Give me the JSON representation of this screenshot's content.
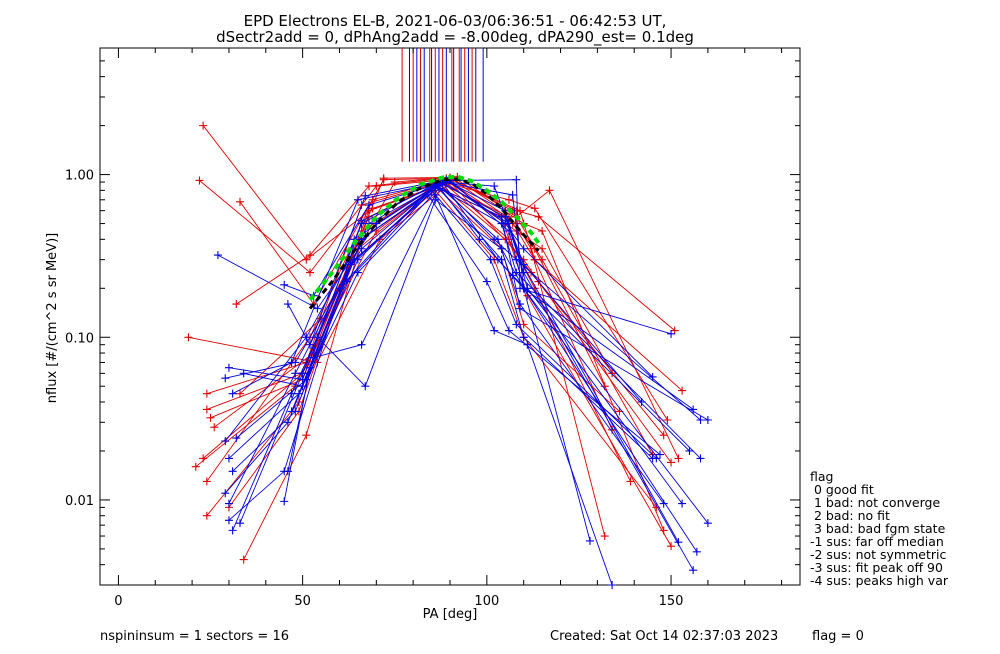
{
  "title_line1": "EPD Electrons EL-B, 2021-06-03/06:36:51 - 06:42:53 UT,",
  "title_line2": "dSectr2add = 0, dPhAng2add = -8.00deg, dPA290_est=   0.1deg",
  "footer": {
    "left": "nspininsum =  1  sectors = 16",
    "created": "Created: Sat Oct 14 02:37:03 2023",
    "flag": "flag = 0"
  },
  "legend": {
    "title": "flag",
    "items": [
      " 0 good fit",
      " 1 bad: not converge",
      " 2 bad: no fit",
      " 3 bad: bad fgm state",
      "-1 sus: far off median",
      "-2 sus: not symmetric",
      "-3 sus: fit peak off 90",
      "-4 sus: peaks high var"
    ]
  },
  "colors": {
    "red": "#e00000",
    "blue": "#0000e0",
    "green": "#00dd00",
    "black": "#000000"
  },
  "chart_data": {
    "type": "line",
    "xlabel": "PA [deg]",
    "ylabel": "nflux [#/(cm^2 s sr MeV)]",
    "xlim": [
      -5,
      185
    ],
    "ylim": [
      0.003,
      6.0
    ],
    "yscale": "log",
    "xticks": [
      0,
      50,
      100,
      150
    ],
    "xticklabels": [
      "0",
      "50",
      "100",
      "150"
    ],
    "yticks": [
      0.01,
      0.1,
      1.0
    ],
    "yticklabels": [
      "0.01",
      "0.10",
      "1.00"
    ],
    "sector_markers": {
      "y_range": [
        1.2,
        6.0
      ],
      "red_x": [
        77,
        80,
        82,
        84.5,
        86,
        88,
        90.5,
        92.5,
        94,
        96
      ],
      "blue_x": [
        79,
        81,
        83,
        85,
        87,
        89,
        91,
        93,
        95,
        97,
        99
      ]
    },
    "series": [
      {
        "color": "red",
        "x": [
          23,
          51,
          69,
          88,
          106,
          113,
          134
        ],
        "y": [
          2.0,
          0.3,
          0.62,
          0.87,
          0.55,
          0.3,
          0.027
        ]
      },
      {
        "color": "red",
        "x": [
          22,
          52,
          70,
          89,
          107,
          113,
          132
        ],
        "y": [
          0.92,
          0.25,
          0.85,
          0.93,
          0.5,
          0.35,
          0.05
        ]
      },
      {
        "color": "red",
        "x": [
          33,
          53,
          72,
          90,
          108,
          114,
          151
        ],
        "y": [
          0.68,
          0.16,
          0.93,
          0.95,
          0.6,
          0.55,
          0.11
        ]
      },
      {
        "color": "red",
        "x": [
          19,
          54,
          71,
          91,
          109,
          113,
          153
        ],
        "y": [
          0.1,
          0.07,
          0.4,
          0.92,
          0.6,
          0.3,
          0.047
        ]
      },
      {
        "color": "red",
        "x": [
          32,
          52,
          68,
          89,
          110,
          114,
          150
        ],
        "y": [
          0.16,
          0.32,
          0.85,
          0.95,
          0.3,
          0.22,
          0.017
        ]
      },
      {
        "color": "red",
        "x": [
          24,
          51,
          66,
          88,
          106,
          113,
          149
        ],
        "y": [
          0.045,
          0.07,
          0.65,
          0.9,
          0.7,
          0.62,
          0.031
        ]
      },
      {
        "color": "red",
        "x": [
          24,
          50,
          70,
          87,
          105,
          112,
          148
        ],
        "y": [
          0.036,
          0.06,
          0.45,
          0.88,
          0.4,
          0.25,
          0.025
        ]
      },
      {
        "color": "red",
        "x": [
          25,
          50,
          72,
          90,
          108,
          112,
          132
        ],
        "y": [
          0.032,
          0.055,
          0.95,
          0.96,
          0.5,
          0.35,
          0.006
        ]
      },
      {
        "color": "red",
        "x": [
          21,
          48,
          65,
          86,
          104,
          111,
          150
        ],
        "y": [
          0.016,
          0.05,
          0.35,
          0.85,
          0.55,
          0.18,
          0.0052
        ]
      },
      {
        "color": "red",
        "x": [
          26,
          53,
          68,
          92,
          110,
          115,
          148
        ],
        "y": [
          0.028,
          0.08,
          0.6,
          0.93,
          0.5,
          0.45,
          0.0065
        ]
      },
      {
        "color": "red",
        "x": [
          24,
          49,
          64,
          86,
          102,
          110,
          146
        ],
        "y": [
          0.008,
          0.04,
          0.3,
          0.8,
          0.3,
          0.1,
          0.009
        ]
      },
      {
        "color": "red",
        "x": [
          34,
          51,
          66,
          88,
          106,
          113,
          139
        ],
        "y": [
          0.0043,
          0.025,
          0.4,
          0.9,
          0.4,
          0.2,
          0.013
        ]
      },
      {
        "color": "red",
        "x": [
          23,
          50,
          68,
          90,
          107,
          115,
          145
        ],
        "y": [
          0.018,
          0.06,
          0.55,
          0.95,
          0.6,
          0.3,
          0.019
        ]
      },
      {
        "color": "red",
        "x": [
          24,
          52,
          69,
          88,
          108,
          115,
          134
        ],
        "y": [
          0.013,
          0.1,
          0.7,
          0.92,
          0.45,
          0.35,
          0.06
        ]
      },
      {
        "color": "red",
        "x": [
          33,
          55,
          75,
          92,
          108,
          117,
          152
        ],
        "y": [
          0.045,
          0.13,
          0.9,
          0.97,
          0.55,
          0.8,
          0.018
        ]
      },
      {
        "color": "red",
        "x": [
          30,
          49,
          66,
          86,
          104,
          110,
          136
        ],
        "y": [
          0.009,
          0.035,
          0.45,
          0.85,
          0.35,
          0.12,
          0.035
        ]
      },
      {
        "color": "blue",
        "x": [
          27,
          54,
          70,
          88,
          102,
          110,
          142
        ],
        "y": [
          0.32,
          0.15,
          0.5,
          0.9,
          0.85,
          0.28,
          0.04
        ]
      },
      {
        "color": "blue",
        "x": [
          45,
          53,
          68,
          90,
          108,
          109,
          150
        ],
        "y": [
          0.21,
          0.18,
          0.65,
          0.92,
          0.93,
          0.2,
          0.105
        ]
      },
      {
        "color": "blue",
        "x": [
          46,
          52,
          67,
          89,
          105,
          110,
          145
        ],
        "y": [
          0.16,
          0.09,
          0.74,
          0.93,
          0.5,
          0.35,
          0.057
        ]
      },
      {
        "color": "blue",
        "x": [
          30,
          50,
          64,
          87,
          102,
          108,
          158
        ],
        "y": [
          0.065,
          0.055,
          0.4,
          0.88,
          0.4,
          0.3,
          0.031
        ]
      },
      {
        "color": "blue",
        "x": [
          29,
          48,
          66,
          86,
          104,
          109,
          160
        ],
        "y": [
          0.056,
          0.07,
          0.35,
          0.85,
          0.55,
          0.15,
          0.031
        ]
      },
      {
        "color": "blue",
        "x": [
          31,
          47,
          65,
          90,
          106,
          110,
          156
        ],
        "y": [
          0.045,
          0.07,
          0.7,
          0.92,
          0.45,
          0.2,
          0.036
        ]
      },
      {
        "color": "blue",
        "x": [
          29,
          51,
          68,
          88,
          103,
          107,
          155
        ],
        "y": [
          0.023,
          0.1,
          0.5,
          0.89,
          0.3,
          0.24,
          0.02
        ]
      },
      {
        "color": "blue",
        "x": [
          30,
          49,
          63,
          85,
          101,
          108,
          146
        ],
        "y": [
          0.018,
          0.045,
          0.28,
          0.8,
          0.3,
          0.12,
          0.018
        ]
      },
      {
        "color": "blue",
        "x": [
          31,
          48,
          62,
          84,
          100,
          106,
          147
        ],
        "y": [
          0.015,
          0.035,
          0.22,
          0.75,
          0.22,
          0.11,
          0.019
        ]
      },
      {
        "color": "blue",
        "x": [
          29,
          46,
          64,
          87,
          103,
          109,
          148
        ],
        "y": [
          0.011,
          0.03,
          0.3,
          0.85,
          0.4,
          0.16,
          0.0095
        ]
      },
      {
        "color": "blue",
        "x": [
          30,
          45,
          66,
          88,
          107,
          110,
          153
        ],
        "y": [
          0.0075,
          0.015,
          0.52,
          0.9,
          0.75,
          0.2,
          0.0095
        ]
      },
      {
        "color": "blue",
        "x": [
          31,
          47,
          60,
          86,
          98,
          110,
          157
        ],
        "y": [
          0.0065,
          0.045,
          0.2,
          0.9,
          0.4,
          0.2,
          0.0048
        ]
      },
      {
        "color": "blue",
        "x": [
          30,
          48,
          67,
          89,
          105,
          109,
          152
        ],
        "y": [
          0.0095,
          0.06,
          0.42,
          0.91,
          0.6,
          0.3,
          0.0055
        ]
      },
      {
        "color": "blue",
        "x": [
          33,
          50,
          66,
          87,
          105,
          110,
          156
        ],
        "y": [
          0.0072,
          0.06,
          0.5,
          0.9,
          0.55,
          0.25,
          0.0037
        ]
      },
      {
        "color": "blue",
        "x": [
          47,
          53,
          66,
          86,
          102,
          111,
          134
        ],
        "y": [
          0.035,
          0.075,
          0.09,
          0.75,
          0.11,
          0.09,
          0.003
        ]
      },
      {
        "color": "blue",
        "x": [
          46,
          54,
          67,
          86,
          104,
          110,
          128
        ],
        "y": [
          0.015,
          0.1,
          0.05,
          0.7,
          0.35,
          0.2,
          0.0056
        ]
      },
      {
        "color": "blue",
        "x": [
          32,
          51,
          65,
          87,
          104,
          110,
          145
        ],
        "y": [
          0.024,
          0.055,
          0.25,
          0.82,
          0.3,
          0.1,
          0.018
        ]
      },
      {
        "color": "blue",
        "x": [
          45,
          52,
          66,
          88,
          106,
          111,
          160
        ],
        "y": [
          0.0098,
          0.065,
          0.4,
          0.9,
          0.5,
          0.2,
          0.0072
        ]
      },
      {
        "color": "blue",
        "x": [
          34,
          50,
          65,
          86,
          104,
          108,
          158
        ],
        "y": [
          0.06,
          0.05,
          0.3,
          0.85,
          0.5,
          0.25,
          0.018
        ]
      }
    ],
    "median_fits": [
      {
        "color": "black",
        "dashed": true,
        "x": [
          52,
          58,
          64,
          70,
          76,
          82,
          88,
          92,
          96,
          100,
          104,
          108,
          112,
          114
        ],
        "y": [
          0.15,
          0.22,
          0.34,
          0.5,
          0.68,
          0.83,
          0.93,
          0.94,
          0.88,
          0.76,
          0.62,
          0.48,
          0.38,
          0.34
        ]
      },
      {
        "color": "green",
        "dashed": true,
        "x": [
          52,
          58,
          64,
          70,
          76,
          82,
          88,
          92,
          96,
          100,
          104,
          108,
          112,
          114
        ],
        "y": [
          0.17,
          0.25,
          0.38,
          0.55,
          0.72,
          0.87,
          0.96,
          0.97,
          0.91,
          0.8,
          0.68,
          0.55,
          0.44,
          0.38
        ]
      }
    ]
  }
}
